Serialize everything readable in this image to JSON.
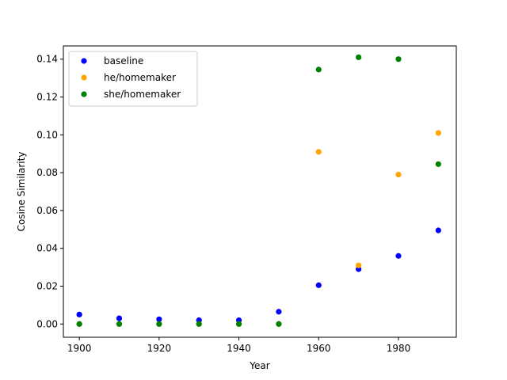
{
  "chart_data": {
    "type": "scatter",
    "title": "",
    "xlabel": "Year",
    "ylabel": "Cosine Similarity",
    "xlim": [
      1896,
      1994.5
    ],
    "ylim": [
      -0.007,
      0.147
    ],
    "x_ticks": [
      1900,
      1920,
      1940,
      1960,
      1980
    ],
    "y_ticks": [
      0.0,
      0.02,
      0.04,
      0.06,
      0.08,
      0.1,
      0.12,
      0.14
    ],
    "y_tick_labels": [
      "0.00",
      "0.02",
      "0.04",
      "0.06",
      "0.08",
      "0.10",
      "0.12",
      "0.14"
    ],
    "x_tick_labels": [
      "1900",
      "1920",
      "1940",
      "1960",
      "1980"
    ],
    "grid": false,
    "legend_position": "top-left",
    "series": [
      {
        "name": "baseline",
        "color": "#0000ff",
        "x": [
          1900,
          1910,
          1920,
          1930,
          1940,
          1950,
          1960,
          1970,
          1980,
          1990
        ],
        "y": [
          0.005,
          0.003,
          0.0025,
          0.002,
          0.002,
          0.0065,
          0.0205,
          0.029,
          0.036,
          0.0495
        ]
      },
      {
        "name": "he/homemaker",
        "color": "#ffa500",
        "x": [
          1900,
          1910,
          1920,
          1930,
          1940,
          1950,
          1960,
          1970,
          1980,
          1990
        ],
        "y": [
          0.0,
          0.0,
          0.0,
          0.0,
          0.0,
          0.0,
          0.091,
          0.031,
          0.079,
          0.101
        ]
      },
      {
        "name": "she/homemaker",
        "color": "#008000",
        "x": [
          1900,
          1910,
          1920,
          1930,
          1940,
          1950,
          1960,
          1970,
          1980,
          1990
        ],
        "y": [
          0.0,
          0.0,
          0.0,
          0.0,
          0.0,
          0.0,
          0.1345,
          0.141,
          0.14,
          0.0845
        ]
      }
    ]
  }
}
